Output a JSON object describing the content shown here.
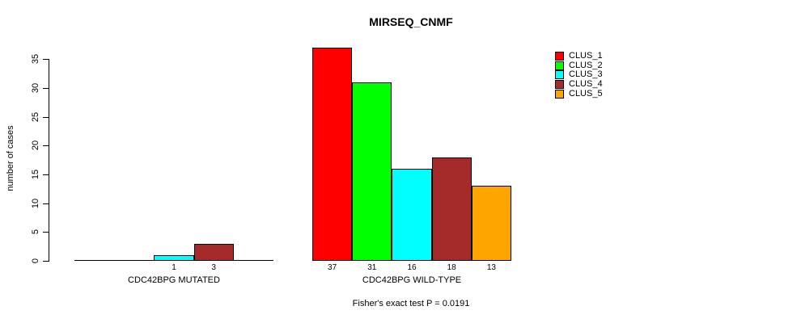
{
  "chart_data": {
    "type": "bar",
    "title": "MIRSEQ_CNMF",
    "ylabel": "number of cases",
    "xlabel": "",
    "ylim": [
      0,
      37
    ],
    "yticks": [
      0,
      5,
      10,
      15,
      20,
      25,
      30,
      35
    ],
    "grid": false,
    "legend_position": "topright",
    "categories": [
      "CLUS_1",
      "CLUS_2",
      "CLUS_3",
      "CLUS_4",
      "CLUS_5"
    ],
    "series_colors": {
      "CLUS_1": "#FF0000",
      "CLUS_2": "#00FF00",
      "CLUS_3": "#00FFFF",
      "CLUS_4": "#A52A2A",
      "CLUS_5": "#FFA500"
    },
    "groups": [
      {
        "label": "CDC42BPG MUTATED",
        "values": [
          0,
          0,
          1,
          3,
          0
        ],
        "bar_labels": [
          "",
          "",
          "1",
          "3",
          ""
        ]
      },
      {
        "label": "CDC42BPG WILD-TYPE",
        "values": [
          37,
          31,
          16,
          18,
          13
        ],
        "bar_labels": [
          "37",
          "31",
          "16",
          "18",
          "13"
        ]
      }
    ],
    "annotation": "Fisher's exact test P = 0.0191"
  }
}
